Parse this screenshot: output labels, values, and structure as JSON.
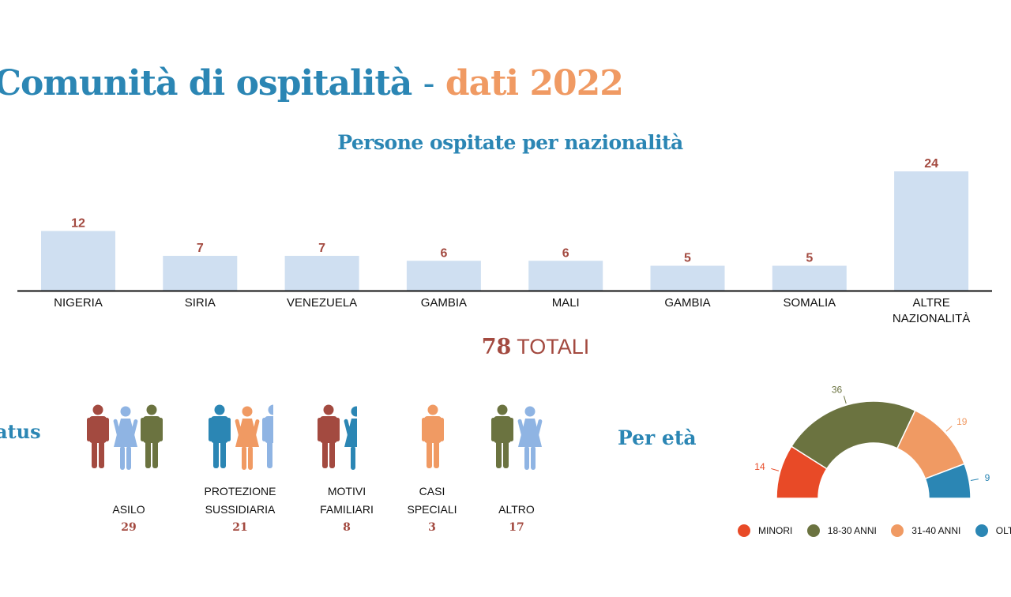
{
  "header": {
    "title_main": "Comunità di ospitalità",
    "title_dash": "-",
    "title_accent": "dati 2022"
  },
  "chart_data": [
    {
      "type": "bar",
      "title": "Persone ospitate per nazionalità",
      "categories": [
        "NIGERIA",
        "SIRIA",
        "VENEZUELA",
        "GAMBIA",
        "MALI",
        "GAMBIA",
        "SOMALIA",
        "ALTRE NAZIONALITÀ"
      ],
      "values": [
        12,
        7,
        7,
        6,
        6,
        5,
        5,
        24
      ],
      "bar_color": "#cfdff1",
      "label_color": "#a34a40",
      "ylim": [
        0,
        24
      ],
      "grid": false
    },
    {
      "type": "pie",
      "variant": "half-donut",
      "title": "Per età",
      "categories": [
        "MINORI",
        "18-30 ANNI",
        "31-40 ANNI",
        "OLTRE I"
      ],
      "values": [
        14,
        36,
        19,
        9
      ],
      "colors": [
        "#e84a27",
        "#6b7340",
        "#f09a63",
        "#2b86b4"
      ],
      "legend_position": "bottom"
    }
  ],
  "totals": {
    "number": "78",
    "label": "TOTALI"
  },
  "status": {
    "title": "atus",
    "items": [
      {
        "line1": "ASILO",
        "line2": "",
        "value": "29",
        "figures": [
          "#a34a40",
          "#8fb4e3",
          "#6b7340"
        ]
      },
      {
        "line1": "PROTEZIONE",
        "line2": "SUSSIDIARIA",
        "value": "21",
        "figures": [
          "#2b86b4",
          "#f09a63",
          "#8fb4e3"
        ]
      },
      {
        "line1": "MOTIVI",
        "line2": "FAMILIARI",
        "value": "8",
        "figures": [
          "#a34a40",
          "#2b86b4"
        ]
      },
      {
        "line1": "CASI",
        "line2": "SPECIALI",
        "value": "3",
        "figures": [
          "#f09a63"
        ]
      },
      {
        "line1": "ALTRO",
        "line2": "",
        "value": "17",
        "figures": [
          "#6b7340",
          "#8fb4e3"
        ]
      }
    ]
  }
}
